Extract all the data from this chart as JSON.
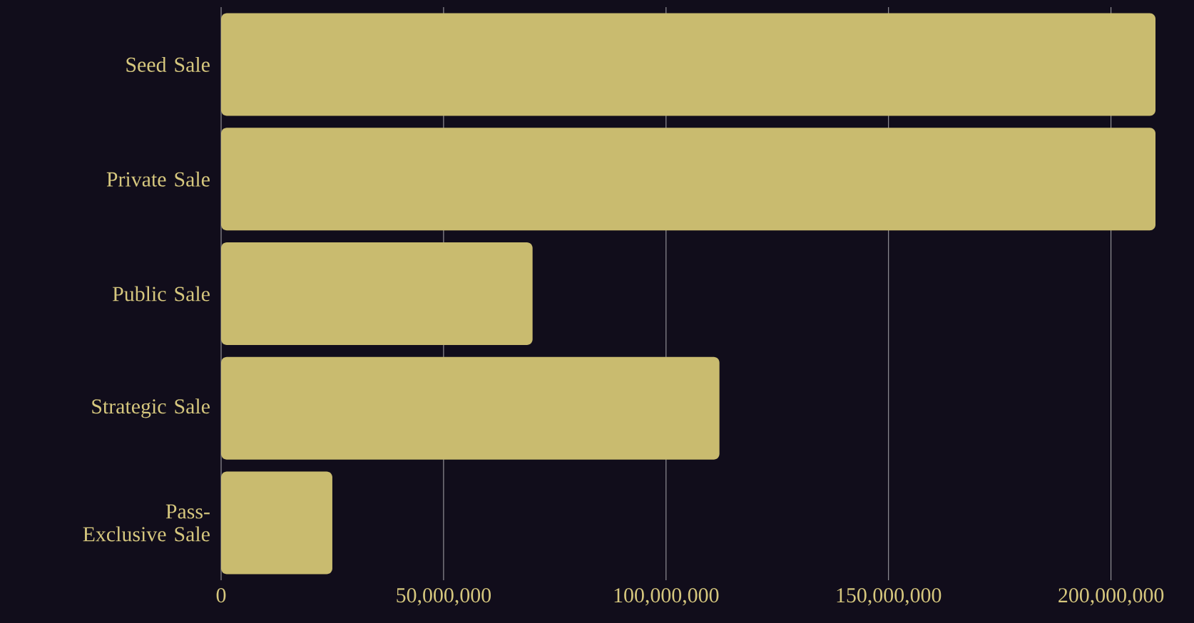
{
  "chart_data": {
    "type": "bar",
    "orientation": "horizontal",
    "categories": [
      "Seed Sale",
      "Private Sale",
      "Public Sale",
      "Strategic Sale",
      "Pass-Exclusive Sale"
    ],
    "values": [
      210000000,
      210000000,
      70000000,
      112000000,
      25000000
    ],
    "color": "#c9bb6f",
    "xlim": [
      0,
      210000000
    ],
    "xticks": [
      0,
      {
        "value": 50000000,
        "label": "50,000,000"
      },
      {
        "value": 100000000,
        "label": "100,000,000"
      },
      {
        "value": 150000000,
        "label": "150,000,000"
      },
      {
        "value": 200000000,
        "label": "200,000,000"
      }
    ],
    "grid": "x"
  }
}
